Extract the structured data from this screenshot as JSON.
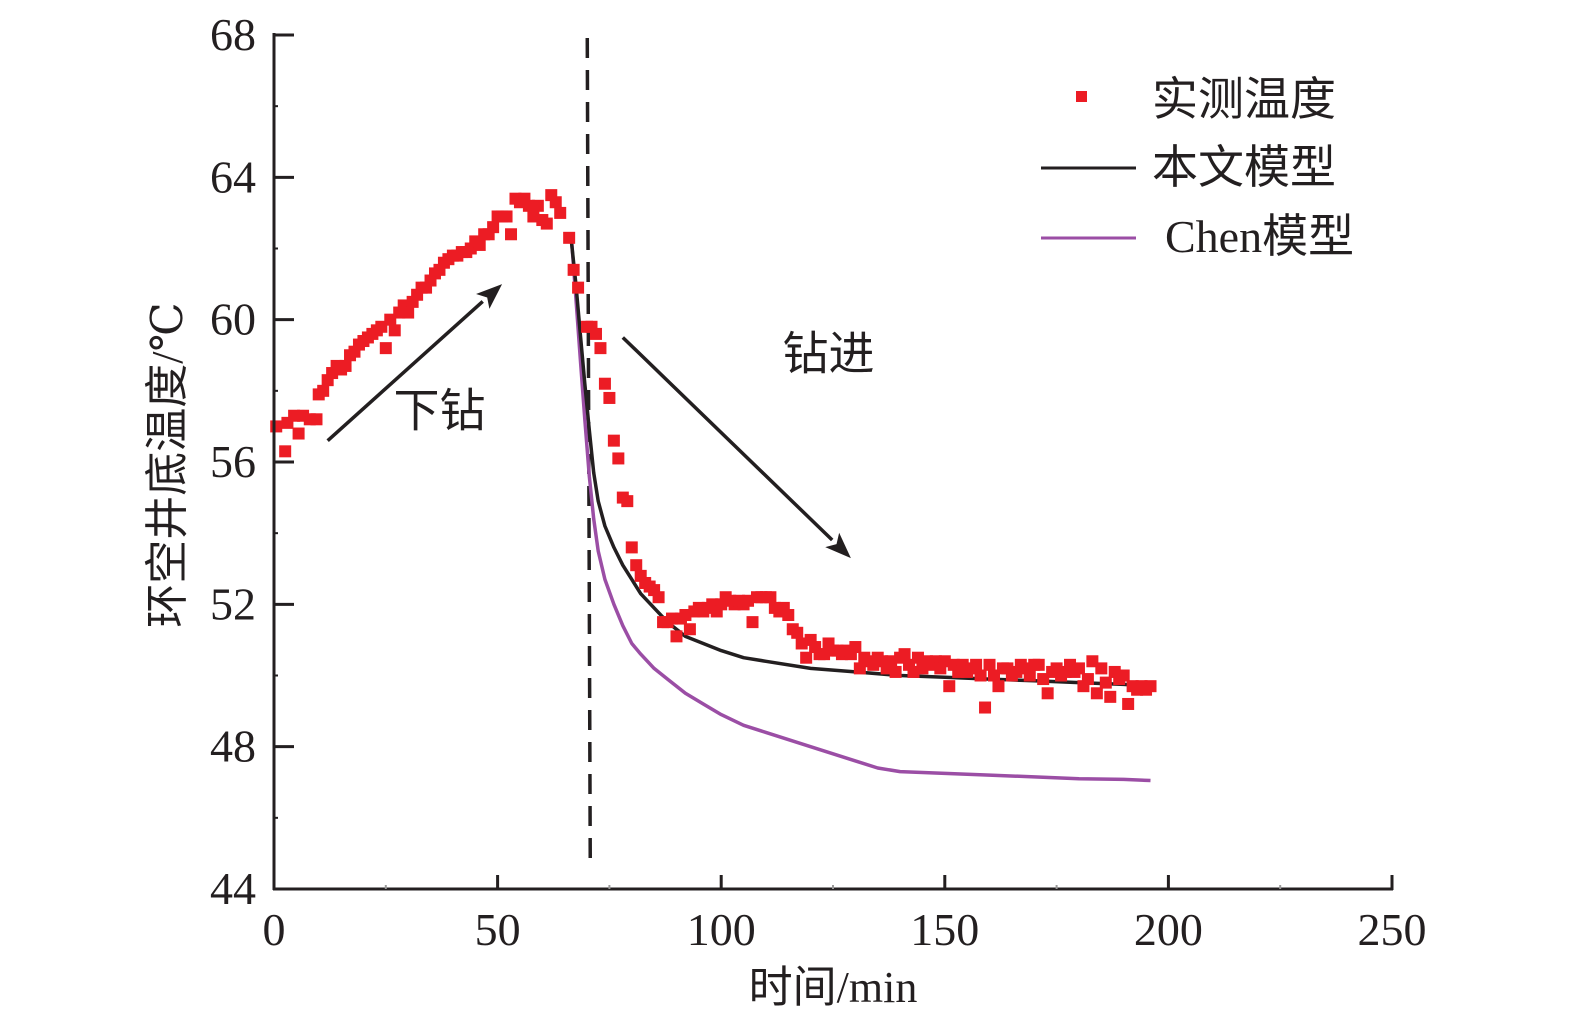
{
  "chart_data": {
    "type": "scatter",
    "title": "",
    "xlabel": "时间/min",
    "ylabel": "环空井底温度/℃",
    "xlim": [
      0,
      250
    ],
    "ylim": [
      44,
      68
    ],
    "xticks": [
      0,
      50,
      100,
      150,
      200,
      250
    ],
    "yticks": [
      44,
      48,
      52,
      56,
      60,
      64,
      68
    ],
    "xtick_labels": [
      "0",
      "50",
      "100",
      "150",
      "200",
      "250"
    ],
    "ytick_labels": [
      "44",
      "48",
      "52",
      "56",
      "60",
      "64",
      "68"
    ],
    "grid": false,
    "legend_position": "top-right",
    "vline": {
      "x": 70.5,
      "style": "dashed",
      "color": "#231f20"
    },
    "annotations": [
      {
        "text": "下钻",
        "x": 37,
        "y": 57.0
      },
      {
        "text": "钻进",
        "x": 124,
        "y": 58.6
      }
    ],
    "arrows": [
      {
        "name": "trip-in-arrow",
        "from": [
          12,
          56.6
        ],
        "to": [
          51,
          61.0
        ]
      },
      {
        "name": "drilling-arrow",
        "from": [
          78,
          59.5
        ],
        "to": [
          129,
          53.3
        ]
      }
    ],
    "series": [
      {
        "name": "实测温度",
        "type": "scatter",
        "marker": "square",
        "color": "#ec1c24",
        "points": [
          [
            0.5,
            57.0
          ],
          [
            2.5,
            56.3
          ],
          [
            3,
            57.1
          ],
          [
            4.5,
            57.3
          ],
          [
            5.5,
            56.8
          ],
          [
            6.5,
            57.3
          ],
          [
            8,
            57.2
          ],
          [
            9.5,
            57.2
          ],
          [
            10,
            57.9
          ],
          [
            11,
            58.0
          ],
          [
            12,
            58.3
          ],
          [
            13,
            58.5
          ],
          [
            14,
            58.7
          ],
          [
            15,
            58.6
          ],
          [
            16,
            58.7
          ],
          [
            17,
            59.0
          ],
          [
            18,
            59.1
          ],
          [
            19,
            59.3
          ],
          [
            20,
            59.4
          ],
          [
            21,
            59.5
          ],
          [
            22,
            59.6
          ],
          [
            23,
            59.7
          ],
          [
            24,
            59.8
          ],
          [
            25,
            59.2
          ],
          [
            26,
            60.0
          ],
          [
            27,
            59.7
          ],
          [
            28,
            60.2
          ],
          [
            29,
            60.4
          ],
          [
            30,
            60.2
          ],
          [
            31,
            60.5
          ],
          [
            32,
            60.7
          ],
          [
            33,
            60.9
          ],
          [
            34,
            60.9
          ],
          [
            35,
            61.1
          ],
          [
            36,
            61.3
          ],
          [
            37,
            61.4
          ],
          [
            38,
            61.6
          ],
          [
            39,
            61.7
          ],
          [
            40,
            61.8
          ],
          [
            41,
            61.8
          ],
          [
            42,
            61.9
          ],
          [
            43,
            61.9
          ],
          [
            44,
            62.0
          ],
          [
            45,
            62.2
          ],
          [
            46,
            62.1
          ],
          [
            47,
            62.4
          ],
          [
            48,
            62.4
          ],
          [
            49,
            62.6
          ],
          [
            50,
            62.9
          ],
          [
            51,
            62.9
          ],
          [
            52,
            62.9
          ],
          [
            53,
            62.4
          ],
          [
            54,
            63.4
          ],
          [
            55,
            63.3
          ],
          [
            56,
            63.4
          ],
          [
            57,
            63.2
          ],
          [
            58,
            62.9
          ],
          [
            59,
            63.2
          ],
          [
            60,
            62.8
          ],
          [
            61,
            62.7
          ],
          [
            62,
            63.5
          ],
          [
            63,
            63.3
          ],
          [
            64,
            63.0
          ],
          [
            66,
            62.3
          ],
          [
            67,
            61.4
          ],
          [
            68,
            60.9
          ],
          [
            70,
            59.8
          ],
          [
            71,
            59.8
          ],
          [
            72,
            59.6
          ],
          [
            73,
            59.2
          ],
          [
            74,
            58.2
          ],
          [
            75,
            57.8
          ],
          [
            76,
            56.6
          ],
          [
            77,
            56.1
          ],
          [
            78,
            55.0
          ],
          [
            79,
            54.9
          ],
          [
            80,
            53.6
          ],
          [
            81,
            53.1
          ],
          [
            82,
            52.8
          ],
          [
            83,
            52.6
          ],
          [
            84,
            52.5
          ],
          [
            85,
            52.4
          ],
          [
            86,
            52.2
          ],
          [
            87,
            51.5
          ],
          [
            88,
            51.5
          ],
          [
            89,
            51.6
          ],
          [
            90,
            51.1
          ],
          [
            91,
            51.6
          ],
          [
            92,
            51.7
          ],
          [
            93,
            51.3
          ],
          [
            94,
            51.8
          ],
          [
            95,
            51.9
          ],
          [
            96,
            51.8
          ],
          [
            97,
            51.9
          ],
          [
            98,
            52.0
          ],
          [
            99,
            51.8
          ],
          [
            100,
            52.0
          ],
          [
            101,
            52.2
          ],
          [
            102,
            52.1
          ],
          [
            103,
            52.0
          ],
          [
            104,
            52.1
          ],
          [
            105,
            52.0
          ],
          [
            106,
            52.1
          ],
          [
            107,
            51.5
          ],
          [
            108,
            52.2
          ],
          [
            109,
            52.2
          ],
          [
            110,
            52.2
          ],
          [
            111,
            52.2
          ],
          [
            112,
            51.9
          ],
          [
            113,
            51.8
          ],
          [
            114,
            51.9
          ],
          [
            115,
            51.7
          ],
          [
            116,
            51.3
          ],
          [
            117,
            51.2
          ],
          [
            118,
            50.9
          ],
          [
            119,
            50.5
          ],
          [
            120,
            51.0
          ],
          [
            121,
            50.8
          ],
          [
            122,
            50.6
          ],
          [
            123,
            50.6
          ],
          [
            124,
            50.9
          ],
          [
            125,
            50.7
          ],
          [
            126,
            50.7
          ],
          [
            127,
            50.6
          ],
          [
            128,
            50.7
          ],
          [
            129,
            50.6
          ],
          [
            130,
            50.8
          ],
          [
            131,
            50.2
          ],
          [
            132,
            50.5
          ],
          [
            133,
            50.4
          ],
          [
            134,
            50.3
          ],
          [
            135,
            50.5
          ],
          [
            136,
            50.4
          ],
          [
            137,
            50.2
          ],
          [
            138,
            50.4
          ],
          [
            139,
            50.1
          ],
          [
            140,
            50.5
          ],
          [
            141,
            50.6
          ],
          [
            142,
            50.3
          ],
          [
            143,
            50.1
          ],
          [
            144,
            50.5
          ],
          [
            145,
            50.2
          ],
          [
            146,
            50.4
          ],
          [
            147,
            50.3
          ],
          [
            148,
            50.4
          ],
          [
            149,
            50.2
          ],
          [
            150,
            50.4
          ],
          [
            151,
            49.7
          ],
          [
            152,
            50.3
          ],
          [
            153,
            50.1
          ],
          [
            154,
            50.3
          ],
          [
            155,
            50.1
          ],
          [
            156,
            50.2
          ],
          [
            157,
            50.3
          ],
          [
            158,
            50.0
          ],
          [
            159,
            49.1
          ],
          [
            160,
            50.3
          ],
          [
            161,
            50.0
          ],
          [
            162,
            49.7
          ],
          [
            163,
            50.2
          ],
          [
            164,
            50.2
          ],
          [
            165,
            50.0
          ],
          [
            166,
            50.1
          ],
          [
            167,
            50.3
          ],
          [
            168,
            50.2
          ],
          [
            169,
            50.0
          ],
          [
            170,
            50.3
          ],
          [
            171,
            50.3
          ],
          [
            172,
            49.9
          ],
          [
            173,
            49.5
          ],
          [
            174,
            50.1
          ],
          [
            175,
            50.2
          ],
          [
            176,
            50.0
          ],
          [
            177,
            50.1
          ],
          [
            178,
            50.3
          ],
          [
            179,
            50.1
          ],
          [
            180,
            50.2
          ],
          [
            181,
            49.7
          ],
          [
            182,
            49.9
          ],
          [
            183,
            50.4
          ],
          [
            184,
            49.5
          ],
          [
            185,
            50.2
          ],
          [
            186,
            49.8
          ],
          [
            187,
            49.4
          ],
          [
            188,
            50.1
          ],
          [
            189,
            49.9
          ],
          [
            190,
            50.0
          ],
          [
            191,
            49.2
          ],
          [
            192,
            49.7
          ],
          [
            193,
            49.6
          ],
          [
            194,
            49.7
          ],
          [
            195,
            49.6
          ],
          [
            196,
            49.7
          ]
        ]
      },
      {
        "name": "本文模型",
        "type": "line",
        "color": "#231f20",
        "points": [
          [
            66.5,
            62.2
          ],
          [
            67.5,
            61.0
          ],
          [
            68.5,
            59.6
          ],
          [
            69.5,
            58.2
          ],
          [
            70.5,
            56.9
          ],
          [
            71.5,
            55.7
          ],
          [
            72.5,
            54.9
          ],
          [
            74,
            54.2
          ],
          [
            76,
            53.6
          ],
          [
            78,
            53.1
          ],
          [
            80,
            52.7
          ],
          [
            82,
            52.3
          ],
          [
            85,
            51.9
          ],
          [
            88,
            51.5
          ],
          [
            92,
            51.1
          ],
          [
            96,
            50.9
          ],
          [
            100,
            50.7
          ],
          [
            105,
            50.5
          ],
          [
            110,
            50.4
          ],
          [
            120,
            50.2
          ],
          [
            130,
            50.1
          ],
          [
            140,
            50.0
          ],
          [
            150,
            49.95
          ],
          [
            160,
            49.9
          ],
          [
            170,
            49.85
          ],
          [
            180,
            49.8
          ],
          [
            190,
            49.75
          ],
          [
            196,
            49.7
          ]
        ]
      },
      {
        "name": "Chen模型",
        "type": "line",
        "color": "#9b4ea5",
        "points": [
          [
            66.5,
            62.3
          ],
          [
            67.5,
            60.6
          ],
          [
            68.5,
            58.9
          ],
          [
            69.5,
            57.2
          ],
          [
            70.5,
            55.6
          ],
          [
            71.5,
            54.4
          ],
          [
            72.5,
            53.5
          ],
          [
            74,
            52.7
          ],
          [
            76,
            52.0
          ],
          [
            78,
            51.4
          ],
          [
            80,
            50.9
          ],
          [
            82,
            50.6
          ],
          [
            85,
            50.2
          ],
          [
            88,
            49.9
          ],
          [
            92,
            49.5
          ],
          [
            96,
            49.2
          ],
          [
            100,
            48.9
          ],
          [
            105,
            48.6
          ],
          [
            110,
            48.4
          ],
          [
            120,
            48.0
          ],
          [
            130,
            47.6
          ],
          [
            135,
            47.4
          ],
          [
            140,
            47.3
          ],
          [
            150,
            47.25
          ],
          [
            160,
            47.2
          ],
          [
            170,
            47.15
          ],
          [
            180,
            47.1
          ],
          [
            190,
            47.08
          ],
          [
            196,
            47.05
          ]
        ]
      }
    ]
  },
  "legend": {
    "items": [
      {
        "label": "实测温度",
        "color": "#ec1c24",
        "kind": "square"
      },
      {
        "label": "本文模型",
        "color": "#231f20",
        "kind": "line"
      },
      {
        "label": "Chen模型",
        "color": "#9b4ea5",
        "kind": "line"
      }
    ]
  }
}
